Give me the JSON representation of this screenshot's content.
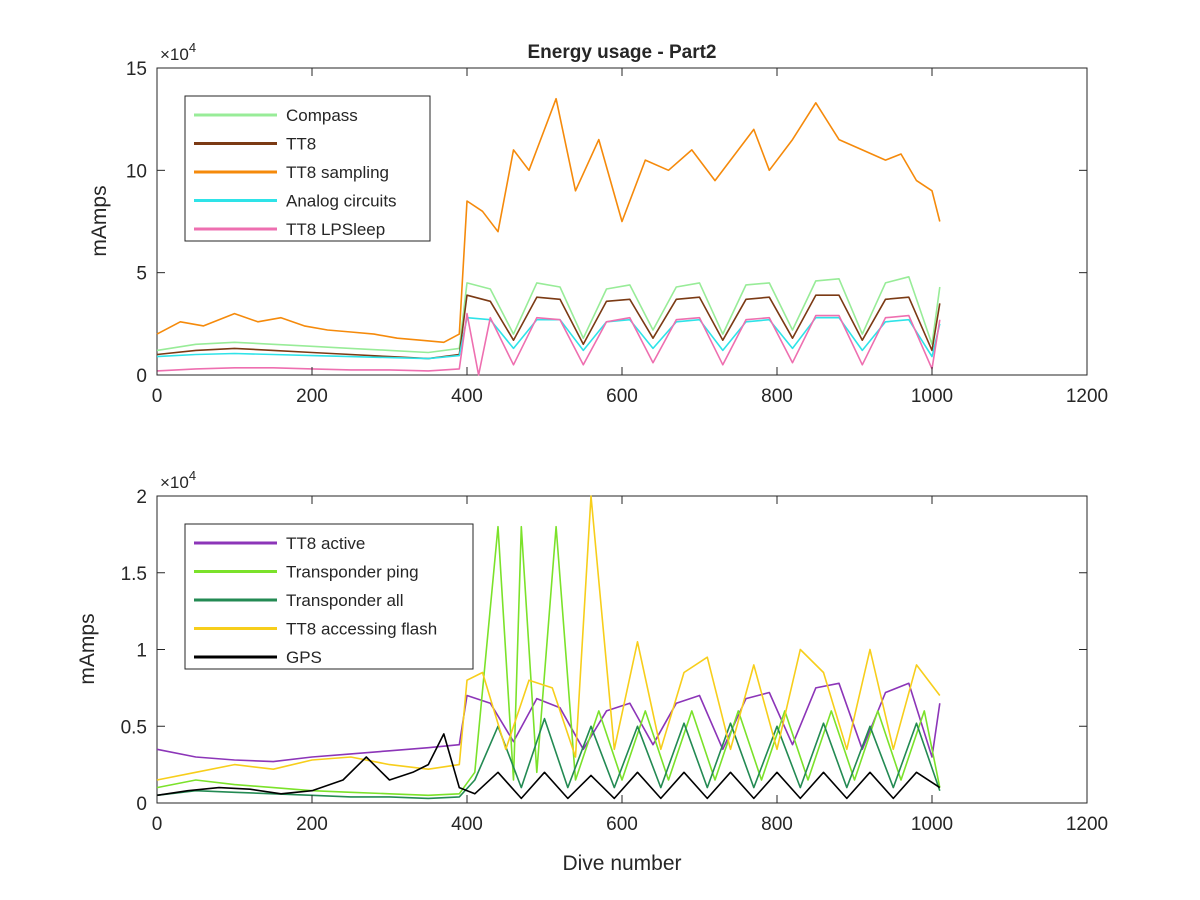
{
  "chart_data": [
    {
      "type": "line",
      "title": "Energy usage - Part2",
      "xlabel": "",
      "ylabel": "mAmps",
      "xlim": [
        0,
        1200
      ],
      "ylim": [
        0,
        150000
      ],
      "x_ticks": [
        "0",
        "200",
        "400",
        "600",
        "800",
        "1000",
        "1200"
      ],
      "y_ticks": [
        "0",
        "5",
        "10",
        "15"
      ],
      "y_exponent_base": "×10",
      "y_exponent_power": "4",
      "legend_position": "top-left",
      "grid": false,
      "series": [
        {
          "name": "Compass",
          "color": "#98ec98",
          "x": [
            0,
            50,
            100,
            150,
            200,
            250,
            300,
            350,
            390,
            400,
            430,
            460,
            490,
            520,
            550,
            580,
            610,
            640,
            670,
            700,
            730,
            760,
            790,
            820,
            850,
            880,
            910,
            940,
            970,
            1000,
            1010
          ],
          "y": [
            12000,
            15000,
            16000,
            15000,
            14000,
            13000,
            12000,
            11000,
            13000,
            45000,
            42000,
            20000,
            45000,
            43000,
            18000,
            42000,
            44000,
            22000,
            43000,
            45000,
            20000,
            44000,
            45000,
            22000,
            46000,
            47000,
            20000,
            45000,
            48000,
            15000,
            43000
          ]
        },
        {
          "name": "TT8",
          "color": "#7b3a14",
          "x": [
            0,
            50,
            100,
            150,
            200,
            250,
            300,
            350,
            390,
            400,
            430,
            460,
            490,
            520,
            550,
            580,
            610,
            640,
            670,
            700,
            730,
            760,
            790,
            820,
            850,
            880,
            910,
            940,
            970,
            1000,
            1010
          ],
          "y": [
            10000,
            12000,
            13000,
            12000,
            11000,
            10000,
            9000,
            8000,
            10000,
            39000,
            36000,
            17000,
            38000,
            37000,
            15000,
            36000,
            37000,
            18000,
            37000,
            38000,
            17000,
            37000,
            38000,
            18000,
            39000,
            39000,
            17000,
            37000,
            38000,
            12000,
            35000
          ]
        },
        {
          "name": "TT8 sampling",
          "color": "#f58a0b",
          "x": [
            0,
            30,
            60,
            100,
            130,
            160,
            190,
            220,
            250,
            280,
            310,
            340,
            370,
            390,
            400,
            420,
            440,
            460,
            480,
            500,
            515,
            540,
            570,
            600,
            630,
            660,
            690,
            720,
            750,
            770,
            790,
            820,
            850,
            880,
            910,
            940,
            960,
            980,
            1000,
            1010
          ],
          "y": [
            20000,
            26000,
            24000,
            30000,
            26000,
            28000,
            24000,
            22000,
            21000,
            20000,
            18000,
            17000,
            16000,
            20000,
            85000,
            80000,
            70000,
            110000,
            100000,
            120000,
            135000,
            90000,
            115000,
            75000,
            105000,
            100000,
            110000,
            95000,
            110000,
            120000,
            100000,
            115000,
            133000,
            115000,
            110000,
            105000,
            108000,
            95000,
            90000,
            75000
          ]
        },
        {
          "name": "Analog circuits",
          "color": "#2ee3e8",
          "x": [
            0,
            50,
            100,
            150,
            200,
            250,
            300,
            350,
            390,
            400,
            430,
            460,
            490,
            520,
            550,
            580,
            610,
            640,
            670,
            700,
            730,
            760,
            790,
            820,
            850,
            880,
            910,
            940,
            970,
            1000,
            1010
          ],
          "y": [
            9000,
            10000,
            10500,
            10000,
            9500,
            9000,
            8500,
            8000,
            9500,
            28000,
            27000,
            13000,
            27000,
            27000,
            12000,
            26000,
            27000,
            13000,
            26000,
            27000,
            12000,
            26000,
            27000,
            13000,
            28000,
            28000,
            12000,
            26000,
            27000,
            9000,
            25000
          ]
        },
        {
          "name": "TT8 LPSleep",
          "color": "#ee6fb0",
          "x": [
            0,
            50,
            100,
            150,
            200,
            250,
            300,
            350,
            390,
            400,
            415,
            430,
            460,
            490,
            520,
            550,
            580,
            610,
            640,
            670,
            700,
            730,
            760,
            790,
            820,
            850,
            880,
            910,
            940,
            970,
            1000,
            1010
          ],
          "y": [
            2000,
            3000,
            3500,
            3500,
            3000,
            2500,
            2500,
            2000,
            3000,
            30000,
            0,
            28000,
            5000,
            28000,
            27000,
            5000,
            26000,
            28000,
            6000,
            27000,
            28000,
            5000,
            27000,
            28000,
            6000,
            29000,
            29000,
            5000,
            28000,
            29000,
            3000,
            27000
          ]
        }
      ]
    },
    {
      "type": "line",
      "title": "",
      "xlabel": "Dive number",
      "ylabel": "mAmps",
      "xlim": [
        0,
        1200
      ],
      "ylim": [
        0,
        20000
      ],
      "x_ticks": [
        "0",
        "200",
        "400",
        "600",
        "800",
        "1000",
        "1200"
      ],
      "y_ticks": [
        "0",
        "0.5",
        "1",
        "1.5",
        "2"
      ],
      "y_exponent_base": "×10",
      "y_exponent_power": "4",
      "legend_position": "top-left",
      "grid": false,
      "series": [
        {
          "name": "TT8 active",
          "color": "#8c35b8",
          "x": [
            0,
            50,
            100,
            150,
            200,
            250,
            300,
            350,
            390,
            400,
            430,
            460,
            490,
            520,
            550,
            580,
            610,
            640,
            670,
            700,
            730,
            760,
            790,
            820,
            850,
            880,
            910,
            940,
            970,
            1000,
            1010
          ],
          "y": [
            3500,
            3000,
            2800,
            2700,
            3000,
            3200,
            3400,
            3600,
            3800,
            7000,
            6500,
            4000,
            6800,
            6200,
            3500,
            6000,
            6500,
            3800,
            6500,
            7000,
            3500,
            6800,
            7200,
            3800,
            7500,
            7800,
            3500,
            7200,
            7800,
            3000,
            6500
          ]
        },
        {
          "name": "Transponder ping",
          "color": "#7be22a",
          "x": [
            0,
            50,
            100,
            150,
            200,
            250,
            300,
            350,
            390,
            410,
            440,
            460,
            470,
            490,
            515,
            540,
            570,
            600,
            630,
            660,
            690,
            720,
            750,
            780,
            810,
            840,
            870,
            900,
            930,
            960,
            990,
            1010
          ],
          "y": [
            1000,
            1500,
            1200,
            1000,
            800,
            700,
            600,
            500,
            600,
            2000,
            18000,
            1500,
            18000,
            2000,
            18000,
            1500,
            6000,
            1500,
            6000,
            1500,
            6000,
            1500,
            6000,
            1500,
            6000,
            1500,
            6000,
            1500,
            6000,
            1500,
            6000,
            1000
          ]
        },
        {
          "name": "Transponder all",
          "color": "#238a53",
          "x": [
            0,
            50,
            100,
            150,
            200,
            250,
            300,
            350,
            390,
            410,
            440,
            470,
            500,
            530,
            560,
            590,
            620,
            650,
            680,
            710,
            740,
            770,
            800,
            830,
            860,
            890,
            920,
            950,
            980,
            1010
          ],
          "y": [
            500,
            800,
            700,
            600,
            500,
            400,
            400,
            300,
            400,
            1500,
            5000,
            1000,
            5500,
            1000,
            5000,
            1000,
            5000,
            1000,
            5200,
            1000,
            5200,
            1000,
            5000,
            1000,
            5200,
            1000,
            5000,
            1000,
            5200,
            800
          ]
        },
        {
          "name": "TT8 accessing flash",
          "color": "#f7ce1b",
          "x": [
            0,
            50,
            100,
            150,
            200,
            250,
            300,
            350,
            390,
            400,
            420,
            450,
            480,
            510,
            540,
            560,
            590,
            620,
            650,
            680,
            710,
            740,
            770,
            800,
            830,
            860,
            890,
            920,
            950,
            980,
            1010
          ],
          "y": [
            1500,
            2000,
            2500,
            2200,
            2800,
            3000,
            2500,
            2200,
            2500,
            8000,
            8500,
            3500,
            8000,
            7500,
            3000,
            20000,
            3500,
            10500,
            3500,
            8500,
            9500,
            3500,
            9000,
            3500,
            10000,
            8500,
            3500,
            10000,
            3500,
            9000,
            7000
          ]
        },
        {
          "name": "GPS",
          "color": "#000000",
          "x": [
            0,
            40,
            80,
            120,
            160,
            200,
            240,
            270,
            300,
            330,
            350,
            370,
            390,
            410,
            440,
            470,
            500,
            530,
            560,
            590,
            620,
            650,
            680,
            710,
            740,
            770,
            800,
            830,
            860,
            890,
            920,
            950,
            980,
            1010
          ],
          "y": [
            500,
            800,
            1000,
            900,
            600,
            800,
            1500,
            3000,
            1500,
            2000,
            2500,
            4500,
            1000,
            600,
            2000,
            300,
            2000,
            300,
            1800,
            300,
            2000,
            300,
            2000,
            300,
            2000,
            300,
            2000,
            300,
            2000,
            300,
            2000,
            300,
            2000,
            1000
          ]
        }
      ]
    }
  ]
}
